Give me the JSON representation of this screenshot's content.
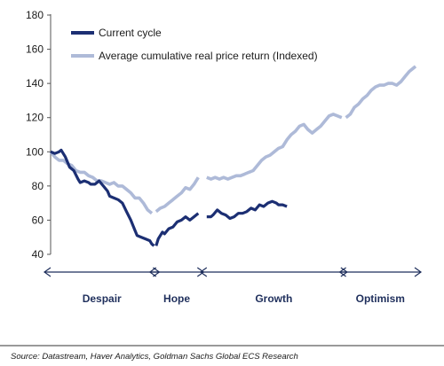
{
  "chart_data": {
    "type": "line",
    "title": "",
    "xlabel": "",
    "ylabel": "",
    "ylim": [
      40,
      180
    ],
    "yticks": [
      "40",
      "60",
      "80",
      "100",
      "120",
      "140",
      "160",
      "180"
    ],
    "legend_position": "top-left",
    "grid": false,
    "series": [
      {
        "name": "Current cycle",
        "color": "#1c2f73",
        "segments": [
          [
            [
              0,
              100
            ],
            [
              2,
              99
            ],
            [
              4,
              100
            ],
            [
              5,
              101
            ],
            [
              7,
              97
            ],
            [
              9,
              91
            ],
            [
              11,
              89
            ],
            [
              13,
              84
            ],
            [
              14,
              82
            ],
            [
              16,
              83
            ],
            [
              18,
              82
            ],
            [
              19,
              81
            ],
            [
              21,
              81
            ],
            [
              23,
              83
            ],
            [
              25,
              80
            ],
            [
              27,
              77
            ],
            [
              28,
              74
            ],
            [
              30,
              73
            ],
            [
              32,
              72
            ],
            [
              34,
              70
            ],
            [
              36,
              65
            ],
            [
              38,
              60
            ],
            [
              40,
              54
            ],
            [
              41,
              51
            ],
            [
              43,
              50
            ],
            [
              45,
              49
            ],
            [
              47,
              48
            ],
            [
              48,
              46
            ],
            [
              49,
              45
            ]
          ],
          [
            [
              50,
              45
            ],
            [
              51,
              49
            ],
            [
              53,
              53
            ],
            [
              54,
              52
            ],
            [
              56,
              55
            ],
            [
              58,
              56
            ],
            [
              60,
              59
            ],
            [
              62,
              60
            ],
            [
              64,
              62
            ],
            [
              66,
              60
            ],
            [
              68,
              62
            ],
            [
              70,
              64
            ]
          ],
          [
            [
              74,
              62
            ],
            [
              76,
              62
            ],
            [
              77,
              63
            ],
            [
              79,
              66
            ],
            [
              81,
              64
            ],
            [
              83,
              63
            ],
            [
              85,
              61
            ],
            [
              87,
              62
            ],
            [
              89,
              64
            ],
            [
              91,
              64
            ],
            [
              93,
              65
            ],
            [
              95,
              67
            ],
            [
              97,
              66
            ],
            [
              99,
              69
            ],
            [
              101,
              68
            ],
            [
              103,
              70
            ],
            [
              105,
              71
            ],
            [
              107,
              70
            ],
            [
              108,
              69
            ],
            [
              110,
              69
            ],
            [
              112,
              68
            ]
          ]
        ]
      },
      {
        "name": "Average cumulative real price return (Indexed)",
        "color": "#aebad8",
        "segments": [
          [
            [
              0,
              100
            ],
            [
              2,
              97
            ],
            [
              4,
              95
            ],
            [
              6,
              95
            ],
            [
              8,
              93
            ],
            [
              10,
              92
            ],
            [
              12,
              89
            ],
            [
              14,
              88
            ],
            [
              16,
              88
            ],
            [
              18,
              86
            ],
            [
              20,
              85
            ],
            [
              22,
              83
            ],
            [
              24,
              83
            ],
            [
              26,
              82
            ],
            [
              28,
              81
            ],
            [
              30,
              82
            ],
            [
              32,
              80
            ],
            [
              34,
              80
            ],
            [
              36,
              78
            ],
            [
              38,
              76
            ],
            [
              40,
              73
            ],
            [
              42,
              73
            ],
            [
              44,
              70
            ],
            [
              46,
              66
            ],
            [
              48,
              64
            ]
          ],
          [
            [
              50,
              65
            ],
            [
              52,
              67
            ],
            [
              54,
              68
            ],
            [
              56,
              70
            ],
            [
              58,
              72
            ],
            [
              60,
              74
            ],
            [
              62,
              76
            ],
            [
              64,
              79
            ],
            [
              66,
              78
            ],
            [
              68,
              81
            ],
            [
              70,
              85
            ]
          ],
          [
            [
              74,
              85
            ],
            [
              76,
              84
            ],
            [
              78,
              85
            ],
            [
              80,
              84
            ],
            [
              82,
              85
            ],
            [
              84,
              84
            ],
            [
              86,
              85
            ],
            [
              88,
              86
            ],
            [
              90,
              86
            ],
            [
              92,
              87
            ],
            [
              94,
              88
            ],
            [
              96,
              89
            ],
            [
              98,
              92
            ],
            [
              100,
              95
            ],
            [
              102,
              97
            ],
            [
              104,
              98
            ],
            [
              106,
              100
            ],
            [
              108,
              102
            ],
            [
              110,
              103
            ],
            [
              112,
              107
            ],
            [
              114,
              110
            ],
            [
              116,
              112
            ],
            [
              118,
              115
            ],
            [
              120,
              116
            ],
            [
              122,
              113
            ],
            [
              124,
              111
            ],
            [
              126,
              113
            ],
            [
              128,
              115
            ],
            [
              130,
              118
            ],
            [
              132,
              121
            ],
            [
              134,
              122
            ],
            [
              136,
              121
            ],
            [
              138,
              120
            ]
          ],
          [
            [
              140,
              120
            ],
            [
              142,
              122
            ],
            [
              144,
              126
            ],
            [
              146,
              128
            ],
            [
              148,
              131
            ],
            [
              150,
              133
            ],
            [
              152,
              136
            ],
            [
              154,
              138
            ],
            [
              156,
              139
            ],
            [
              158,
              139
            ],
            [
              160,
              140
            ],
            [
              162,
              140
            ],
            [
              164,
              139
            ],
            [
              166,
              141
            ],
            [
              168,
              144
            ],
            [
              170,
              147
            ],
            [
              172,
              149
            ],
            [
              173,
              150
            ]
          ]
        ]
      }
    ],
    "phases": [
      {
        "label": "Despair",
        "x_start": 0,
        "x_end": 49
      },
      {
        "label": "Hope",
        "x_start": 50,
        "x_end": 70
      },
      {
        "label": "Growth",
        "x_start": 74,
        "x_end": 138
      },
      {
        "label": "Optimism",
        "x_start": 140,
        "x_end": 173
      }
    ]
  },
  "legend": {
    "current_cycle": "Current cycle",
    "average_return": "Average cumulative real price return (Indexed)"
  },
  "source": "Source: Datastream, Haver Analytics, Goldman Sachs Global ECS Research"
}
